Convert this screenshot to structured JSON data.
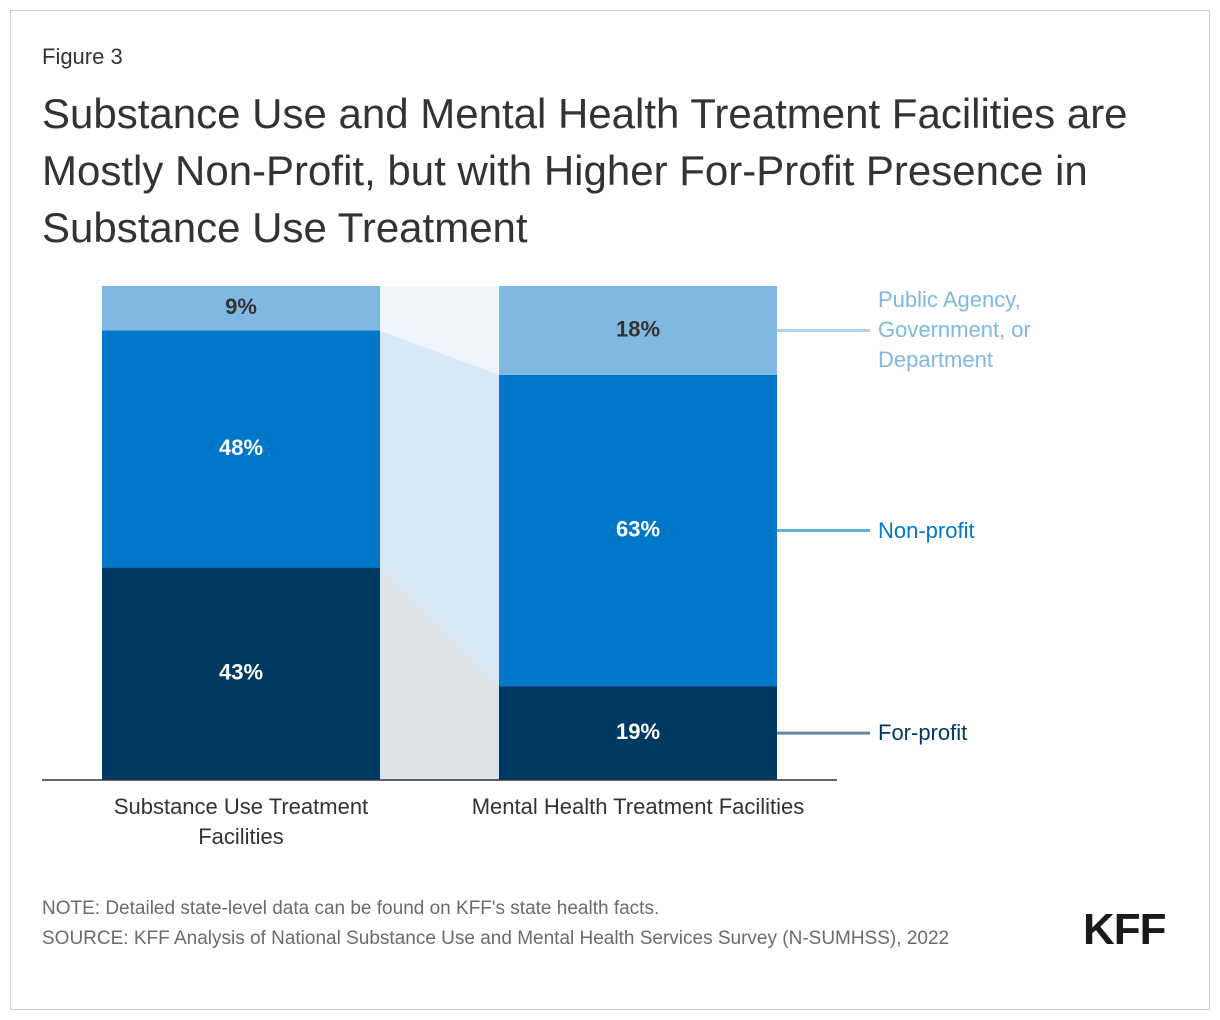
{
  "chart_data": {
    "type": "stacked_bar",
    "figure_label": "Figure 3",
    "title": "Substance Use and Mental Health Treatment Facilities are Mostly Non-Profit, but with Higher For-Profit Presence in Substance Use Treatment",
    "categories": [
      "Substance Use Treatment Facilities",
      "Mental Health Treatment Facilities"
    ],
    "series": [
      {
        "name": "For-profit",
        "color": "#003a63",
        "values": [
          43,
          19
        ],
        "value_labels": [
          "43%",
          "19%"
        ]
      },
      {
        "name": "Non-profit",
        "color": "#0077c8",
        "values": [
          48,
          63
        ],
        "value_labels": [
          "48%",
          "63%"
        ]
      },
      {
        "name": "Public Agency, Government, or Department",
        "color": "#7fb8e0",
        "values": [
          9,
          18
        ],
        "value_labels": [
          "9%",
          "18%"
        ]
      }
    ],
    "ylim": [
      0,
      100
    ],
    "note": "NOTE: Detailed state-level data can be found on KFF's state health facts.",
    "source": "SOURCE: KFF Analysis of National Substance Use and Mental Health Services Survey (N-SUMHSS), 2022",
    "logo": "KFF"
  }
}
